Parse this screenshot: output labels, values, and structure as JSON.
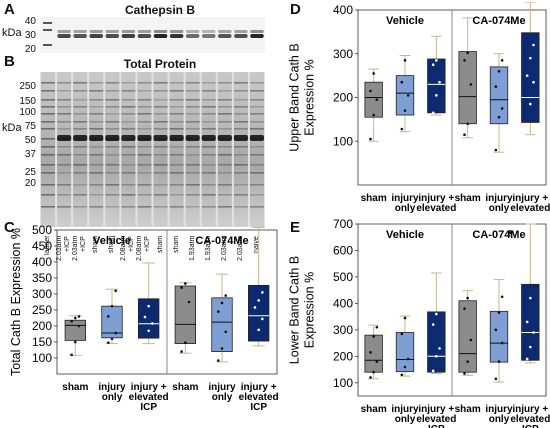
{
  "panel_letters": {
    "a": "A",
    "b": "B",
    "c": "C",
    "d": "D",
    "e": "E"
  },
  "blot_a": {
    "title": "Cathepsin B",
    "ticks": [
      "40",
      "30",
      "20"
    ],
    "unit": "kDa"
  },
  "blot_b": {
    "title": "Total Protein",
    "ticks": [
      "250",
      "150",
      "100",
      "75",
      "50",
      "37",
      "25",
      "20"
    ],
    "unit": "kDa"
  },
  "lane_labels": [
    "ladder",
    "2.03atm\n+ICP",
    "2.03atm\n+ICP",
    "sham",
    "sham",
    "2.08atm\n+ICP",
    "2.08atm\n+ICP",
    "sham",
    "sham",
    "1.93atm",
    "1.93atm",
    "2.03atm",
    "2.03atm",
    "naive"
  ],
  "colors": {
    "sham": "#8c8c8c",
    "injury_only": "#7f9ed3",
    "elevated_icp": "#0c2a70",
    "whisker": "#c8b78e",
    "divider": "#888888"
  },
  "chart_data": [
    {
      "id": "C",
      "type": "box",
      "ylabel": "Total Cath B Expression %",
      "ylim": [
        50,
        500
      ],
      "yticks": [
        100,
        150,
        200,
        250,
        300,
        350,
        400,
        450,
        500
      ],
      "groups": [
        "Vehicle",
        "CA-074Me"
      ],
      "categories": [
        "sham",
        "injury\nonly",
        "injury +\nelevated\nICP"
      ],
      "annotation": "",
      "boxes": [
        {
          "group": "Vehicle",
          "category": "sham",
          "min": 108,
          "q1": 155,
          "median": 202,
          "q3": 218,
          "max": 232,
          "points": [
            110,
            150,
            200,
            215,
            225,
            230
          ]
        },
        {
          "group": "Vehicle",
          "category": "injury only",
          "min": 145,
          "q1": 163,
          "median": 178,
          "q3": 262,
          "max": 315,
          "points": [
            148,
            160,
            178,
            230,
            262,
            310
          ]
        },
        {
          "group": "Vehicle",
          "category": "injury + elevated ICP",
          "min": 145,
          "q1": 162,
          "median": 207,
          "q3": 285,
          "max": 397,
          "points": [
            155,
            185,
            208,
            228,
            262
          ]
        },
        {
          "group": "CA-074Me",
          "category": "sham",
          "min": 115,
          "q1": 145,
          "median": 205,
          "q3": 325,
          "max": 335,
          "points": [
            120,
            148,
            275,
            320,
            333
          ]
        },
        {
          "group": "CA-074Me",
          "category": "injury only",
          "min": 88,
          "q1": 120,
          "median": 212,
          "q3": 288,
          "max": 362,
          "points": [
            92,
            130,
            182,
            245,
            272,
            295
          ]
        },
        {
          "group": "CA-074Me",
          "category": "injury + elevated ICP",
          "min": 138,
          "q1": 153,
          "median": 232,
          "q3": 327,
          "max": 508,
          "points": [
            145,
            188,
            222,
            258,
            280,
            305
          ]
        }
      ]
    },
    {
      "id": "D",
      "type": "box",
      "ylabel": "Upper Band Cath B\nExpression %",
      "ylim": [
        0,
        400
      ],
      "yticks": [
        100,
        200,
        300,
        400
      ],
      "groups": [
        "Vehicle",
        "CA-074Me"
      ],
      "categories": [
        "sham",
        "injury\nonly",
        "injury +\nelevated\nICP"
      ],
      "annotation": "",
      "boxes": [
        {
          "group": "Vehicle",
          "category": "sham",
          "min": 100,
          "q1": 155,
          "median": 200,
          "q3": 235,
          "max": 265,
          "points": [
            105,
            160,
            195,
            215,
            255
          ]
        },
        {
          "group": "Vehicle",
          "category": "injury only",
          "min": 122,
          "q1": 160,
          "median": 210,
          "q3": 250,
          "max": 296,
          "points": [
            128,
            170,
            205,
            235,
            285
          ]
        },
        {
          "group": "Vehicle",
          "category": "injury + elevated ICP",
          "min": 160,
          "q1": 165,
          "median": 230,
          "q3": 288,
          "max": 340,
          "points": [
            165,
            205,
            235,
            275,
            285
          ]
        },
        {
          "group": "CA-074Me",
          "category": "sham",
          "min": 108,
          "q1": 140,
          "median": 202,
          "q3": 305,
          "max": 382,
          "points": [
            115,
            140,
            230,
            285,
            302
          ]
        },
        {
          "group": "CA-074Me",
          "category": "injury only",
          "min": 75,
          "q1": 140,
          "median": 195,
          "q3": 270,
          "max": 300,
          "points": [
            80,
            155,
            175,
            225,
            260,
            285
          ]
        },
        {
          "group": "CA-074Me",
          "category": "injury + elevated ICP",
          "min": 115,
          "q1": 143,
          "median": 200,
          "q3": 348,
          "max": 418,
          "points": [
            135,
            185,
            235,
            250,
            290,
            320
          ]
        }
      ]
    },
    {
      "id": "E",
      "type": "box",
      "ylabel": "Lower Band Cath B\nExpression %",
      "ylim": [
        50,
        700
      ],
      "yticks": [
        100,
        200,
        300,
        400,
        500,
        600,
        700
      ],
      "groups": [
        "Vehicle",
        "CA-074Me"
      ],
      "categories": [
        "sham",
        "injury\nonly",
        "injury +\nelevated\nICP"
      ],
      "annotation": "*",
      "boxes": [
        {
          "group": "Vehicle",
          "category": "sham",
          "min": 115,
          "q1": 140,
          "median": 185,
          "q3": 280,
          "max": 318,
          "points": [
            120,
            140,
            180,
            215,
            275,
            310
          ]
        },
        {
          "group": "Vehicle",
          "category": "injury only",
          "min": 125,
          "q1": 142,
          "median": 188,
          "q3": 290,
          "max": 352,
          "points": [
            130,
            160,
            190,
            285,
            345
          ]
        },
        {
          "group": "Vehicle",
          "category": "injury + elevated ICP",
          "min": 135,
          "q1": 140,
          "median": 200,
          "q3": 368,
          "max": 515,
          "points": [
            145,
            200,
            230,
            320,
            360
          ]
        },
        {
          "group": "CA-074Me",
          "category": "sham",
          "min": 128,
          "q1": 140,
          "median": 210,
          "q3": 410,
          "max": 448,
          "points": [
            135,
            180,
            262,
            380,
            420
          ]
        },
        {
          "group": "CA-074Me",
          "category": "injury only",
          "min": 103,
          "q1": 178,
          "median": 250,
          "q3": 370,
          "max": 490,
          "points": [
            115,
            180,
            250,
            300,
            365,
            425
          ]
        },
        {
          "group": "CA-074Me",
          "category": "injury + elevated ICP",
          "min": 175,
          "q1": 185,
          "median": 290,
          "q3": 472,
          "max": 700,
          "points": [
            190,
            235,
            290,
            330,
            420,
            500
          ]
        }
      ]
    }
  ]
}
